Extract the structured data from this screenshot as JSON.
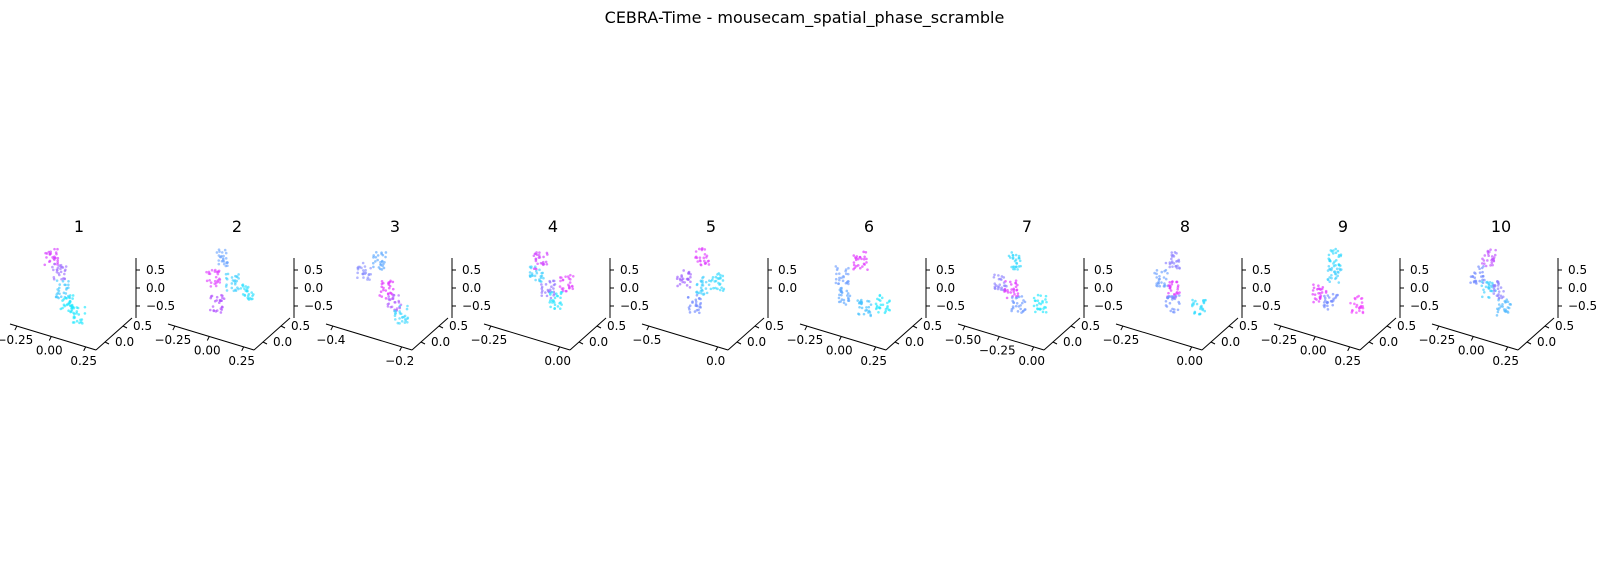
{
  "figure": {
    "title": "CEBRA-Time - mousecam_spatial_phase_scramble"
  },
  "chart_data": [
    {
      "type": "scatter",
      "dim": 3,
      "title": "1",
      "x_ticks": [
        "-0.25",
        "0.00",
        "0.25"
      ],
      "y_ticks": [
        "0.5",
        "0.0"
      ],
      "z_ticks": [
        "0.5",
        "0.0",
        "-0.5"
      ],
      "cluster": [
        [
          0.25,
          0.9,
          "#d63bff"
        ],
        [
          0.35,
          0.7,
          "#a070ff"
        ],
        [
          0.4,
          0.45,
          "#40c8ff"
        ],
        [
          0.45,
          0.25,
          "#18e6ff"
        ],
        [
          0.6,
          0.1,
          "#20e8ff"
        ]
      ]
    },
    {
      "type": "scatter",
      "dim": 3,
      "title": "2",
      "x_ticks": [
        "-0.25",
        "0.00",
        "0.25"
      ],
      "y_ticks": [
        "0.5",
        "0.0"
      ],
      "z_ticks": [
        "0.5",
        "0.0",
        "-0.5"
      ],
      "cluster": [
        [
          0.4,
          0.9,
          "#70a8ff"
        ],
        [
          0.3,
          0.6,
          "#e040ff"
        ],
        [
          0.55,
          0.55,
          "#40d0ff"
        ],
        [
          0.35,
          0.25,
          "#b050ff"
        ],
        [
          0.75,
          0.4,
          "#30e0ff"
        ]
      ]
    },
    {
      "type": "scatter",
      "dim": 3,
      "title": "3",
      "x_ticks": [
        "-0.4",
        "-0.2"
      ],
      "y_ticks": [
        "0.5",
        "0.0"
      ],
      "z_ticks": [
        "0.5",
        "0.0",
        "-0.5"
      ],
      "cluster": [
        [
          0.4,
          0.85,
          "#5aa8ff"
        ],
        [
          0.2,
          0.7,
          "#8c90ff"
        ],
        [
          0.5,
          0.45,
          "#e030ff"
        ],
        [
          0.6,
          0.25,
          "#b060ff"
        ],
        [
          0.7,
          0.1,
          "#40d8ff"
        ]
      ]
    },
    {
      "type": "scatter",
      "dim": 3,
      "title": "4",
      "x_ticks": [
        "-0.25",
        "0.00"
      ],
      "y_ticks": [
        "0.5",
        "0.0"
      ],
      "z_ticks": [
        "0.5",
        "0.0",
        "-0.5"
      ],
      "cluster": [
        [
          0.45,
          0.85,
          "#d040ff"
        ],
        [
          0.4,
          0.65,
          "#40d0ff"
        ],
        [
          0.55,
          0.45,
          "#9070ff"
        ],
        [
          0.65,
          0.3,
          "#20e4ff"
        ],
        [
          0.8,
          0.55,
          "#e040ff"
        ]
      ]
    },
    {
      "type": "scatter",
      "dim": 3,
      "title": "5",
      "x_ticks": [
        "-0.5",
        "0.0"
      ],
      "y_ticks": [
        "0.5",
        "0.0"
      ],
      "z_ticks": [
        "0.5",
        "0.0"
      ],
      "cluster": [
        [
          0.5,
          0.9,
          "#e040ff"
        ],
        [
          0.25,
          0.6,
          "#a060ff"
        ],
        [
          0.5,
          0.5,
          "#40d0ff"
        ],
        [
          0.4,
          0.25,
          "#7088ff"
        ],
        [
          0.7,
          0.55,
          "#30d8ff"
        ]
      ]
    },
    {
      "type": "scatter",
      "dim": 3,
      "title": "6",
      "x_ticks": [
        "-0.25",
        "0.00",
        "0.25"
      ],
      "y_ticks": [
        "0.5",
        "0.0"
      ],
      "z_ticks": [
        "0.5",
        "0.0",
        "-0.5"
      ],
      "cluster": [
        [
          0.5,
          0.85,
          "#e030ff"
        ],
        [
          0.25,
          0.65,
          "#70a0ff"
        ],
        [
          0.3,
          0.35,
          "#60a8ff"
        ],
        [
          0.55,
          0.2,
          "#40c0ff"
        ],
        [
          0.8,
          0.25,
          "#20e8ff"
        ]
      ]
    },
    {
      "type": "scatter",
      "dim": 3,
      "title": "7",
      "x_ticks": [
        "-0.50",
        "-0.25",
        "0.00"
      ],
      "y_ticks": [
        "0.5",
        "0.0"
      ],
      "z_ticks": [
        "0.5",
        "0.0",
        "-0.5"
      ],
      "cluster": [
        [
          0.45,
          0.85,
          "#30d8ff"
        ],
        [
          0.25,
          0.55,
          "#8c80ff"
        ],
        [
          0.4,
          0.45,
          "#e030ff"
        ],
        [
          0.5,
          0.25,
          "#6c98ff"
        ],
        [
          0.8,
          0.25,
          "#20e8ff"
        ]
      ]
    },
    {
      "type": "scatter",
      "dim": 3,
      "title": "8",
      "x_ticks": [
        "-0.25",
        "0.00"
      ],
      "y_ticks": [
        "0.5",
        "0.0"
      ],
      "z_ticks": [
        "0.5",
        "0.0",
        "-0.5"
      ],
      "cluster": [
        [
          0.45,
          0.85,
          "#8c80ff"
        ],
        [
          0.3,
          0.6,
          "#6ca0ff"
        ],
        [
          0.45,
          0.45,
          "#e030ff"
        ],
        [
          0.45,
          0.25,
          "#7090ff"
        ],
        [
          0.8,
          0.2,
          "#30dcff"
        ]
      ]
    },
    {
      "type": "scatter",
      "dim": 3,
      "title": "9",
      "x_ticks": [
        "-0.25",
        "0.00",
        "0.25"
      ],
      "y_ticks": [
        "0.5",
        "0.0"
      ],
      "z_ticks": [
        "0.5",
        "0.0",
        "-0.5"
      ],
      "cluster": [
        [
          0.5,
          0.9,
          "#30d8ff"
        ],
        [
          0.5,
          0.65,
          "#40d0ff"
        ],
        [
          0.3,
          0.4,
          "#e030ff"
        ],
        [
          0.45,
          0.3,
          "#7088ff"
        ],
        [
          0.8,
          0.25,
          "#f040ff"
        ]
      ]
    },
    {
      "type": "scatter",
      "dim": 3,
      "title": "10",
      "x_ticks": [
        "-0.25",
        "0.00",
        "0.25"
      ],
      "y_ticks": [
        "0.5",
        "0.0"
      ],
      "z_ticks": [
        "0.5",
        "0.0",
        "-0.5"
      ],
      "cluster": [
        [
          0.45,
          0.9,
          "#c050ff"
        ],
        [
          0.3,
          0.65,
          "#7088ff"
        ],
        [
          0.45,
          0.45,
          "#40d0ff"
        ],
        [
          0.6,
          0.45,
          "#8c80ff"
        ],
        [
          0.65,
          0.2,
          "#50b8ff"
        ]
      ]
    }
  ]
}
